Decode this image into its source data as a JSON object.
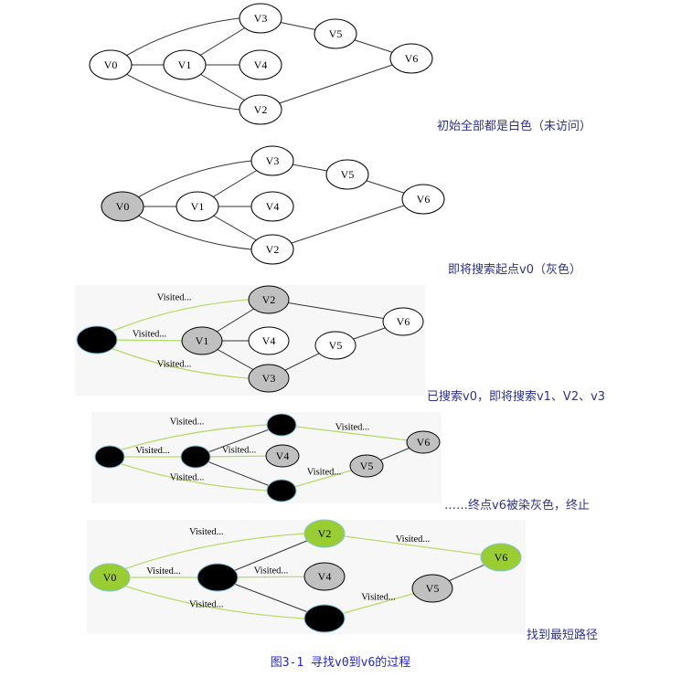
{
  "colors": {
    "white": "#ffffff",
    "gray": "#c0c0c0",
    "black": "#000000",
    "green": "#9acd32",
    "edge": "#333333",
    "visited_edge": "#b5dc6a",
    "panel_bg": "#f7f7f7",
    "caption": "#2e3192",
    "figure_caption": "#2222dd"
  },
  "edge_label": "Visited...",
  "panels": [
    {
      "caption": "初始全部都是白色（未访问）",
      "nodes": {
        "V0": {
          "label": "V0",
          "state": "white"
        },
        "V1": {
          "label": "V1",
          "state": "white"
        },
        "V2": {
          "label": "V2",
          "state": "white"
        },
        "V3": {
          "label": "V3",
          "state": "white"
        },
        "V4": {
          "label": "V4",
          "state": "white"
        },
        "V5": {
          "label": "V5",
          "state": "white"
        },
        "V6": {
          "label": "V6",
          "state": "white"
        }
      },
      "edges": [
        [
          "V0",
          "V3",
          false
        ],
        [
          "V0",
          "V1",
          false
        ],
        [
          "V0",
          "V2",
          false
        ],
        [
          "V1",
          "V3",
          false
        ],
        [
          "V1",
          "V4",
          false
        ],
        [
          "V1",
          "V2",
          false
        ],
        [
          "V3",
          "V5",
          false
        ],
        [
          "V5",
          "V6",
          false
        ],
        [
          "V2",
          "V6",
          false
        ]
      ]
    },
    {
      "caption": "即将搜索起点v0（灰色）",
      "nodes": {
        "V0": {
          "label": "V0",
          "state": "gray"
        },
        "V1": {
          "label": "V1",
          "state": "white"
        },
        "V2": {
          "label": "V2",
          "state": "white"
        },
        "V3": {
          "label": "V3",
          "state": "white"
        },
        "V4": {
          "label": "V4",
          "state": "white"
        },
        "V5": {
          "label": "V5",
          "state": "white"
        },
        "V6": {
          "label": "V6",
          "state": "white"
        }
      },
      "edges": [
        [
          "V0",
          "V3",
          false
        ],
        [
          "V0",
          "V1",
          false
        ],
        [
          "V0",
          "V2",
          false
        ],
        [
          "V1",
          "V3",
          false
        ],
        [
          "V1",
          "V4",
          false
        ],
        [
          "V1",
          "V2",
          false
        ],
        [
          "V3",
          "V5",
          false
        ],
        [
          "V5",
          "V6",
          false
        ],
        [
          "V2",
          "V6",
          false
        ]
      ]
    },
    {
      "caption": "已搜索v0，即将搜索v1、V2、v3",
      "nodes": {
        "V0": {
          "label": "",
          "state": "black"
        },
        "V1": {
          "label": "V1",
          "state": "gray"
        },
        "V2": {
          "label": "V2",
          "state": "gray"
        },
        "V3": {
          "label": "V3",
          "state": "gray"
        },
        "V4": {
          "label": "V4",
          "state": "white"
        },
        "V5": {
          "label": "V5",
          "state": "white"
        },
        "V6": {
          "label": "V6",
          "state": "white"
        }
      },
      "edges": [
        [
          "V0",
          "V2",
          true
        ],
        [
          "V0",
          "V1",
          true
        ],
        [
          "V0",
          "V3",
          true
        ],
        [
          "V1",
          "V2",
          false
        ],
        [
          "V1",
          "V4",
          false
        ],
        [
          "V1",
          "V3",
          false
        ],
        [
          "V2",
          "V6",
          false
        ],
        [
          "V3",
          "V5",
          false
        ],
        [
          "V5",
          "V6",
          false
        ]
      ]
    },
    {
      "caption": "……终点v6被染灰色，终止",
      "nodes": {
        "V0": {
          "label": "",
          "state": "black"
        },
        "V1": {
          "label": "",
          "state": "black"
        },
        "V2": {
          "label": "",
          "state": "black"
        },
        "V3": {
          "label": "",
          "state": "black"
        },
        "V4": {
          "label": "V4",
          "state": "gray"
        },
        "V5": {
          "label": "V5",
          "state": "gray"
        },
        "V6": {
          "label": "V6",
          "state": "gray"
        }
      },
      "edges": [
        [
          "V0",
          "V2",
          true
        ],
        [
          "V0",
          "V1",
          true
        ],
        [
          "V0",
          "V3",
          true
        ],
        [
          "V1",
          "V4",
          true
        ],
        [
          "V2",
          "V6",
          true
        ],
        [
          "V3",
          "V5",
          true
        ],
        [
          "V1",
          "V2",
          false
        ],
        [
          "V1",
          "V3",
          false
        ],
        [
          "V5",
          "V6",
          false
        ]
      ]
    },
    {
      "caption": "找到最短路径",
      "nodes": {
        "V0": {
          "label": "V0",
          "state": "green"
        },
        "V1": {
          "label": "",
          "state": "black"
        },
        "V2": {
          "label": "V2",
          "state": "green"
        },
        "V3": {
          "label": "",
          "state": "black"
        },
        "V4": {
          "label": "V4",
          "state": "gray"
        },
        "V5": {
          "label": "V5",
          "state": "gray"
        },
        "V6": {
          "label": "V6",
          "state": "green"
        }
      },
      "edges": [
        [
          "V0",
          "V2",
          true
        ],
        [
          "V0",
          "V1",
          true
        ],
        [
          "V0",
          "V3",
          true
        ],
        [
          "V1",
          "V4",
          true
        ],
        [
          "V2",
          "V6",
          true
        ],
        [
          "V3",
          "V5",
          true
        ],
        [
          "V1",
          "V2",
          false
        ],
        [
          "V1",
          "V3",
          false
        ],
        [
          "V5",
          "V6",
          false
        ]
      ]
    }
  ],
  "figure_caption": "图3-1 寻找v0到v6的过程"
}
